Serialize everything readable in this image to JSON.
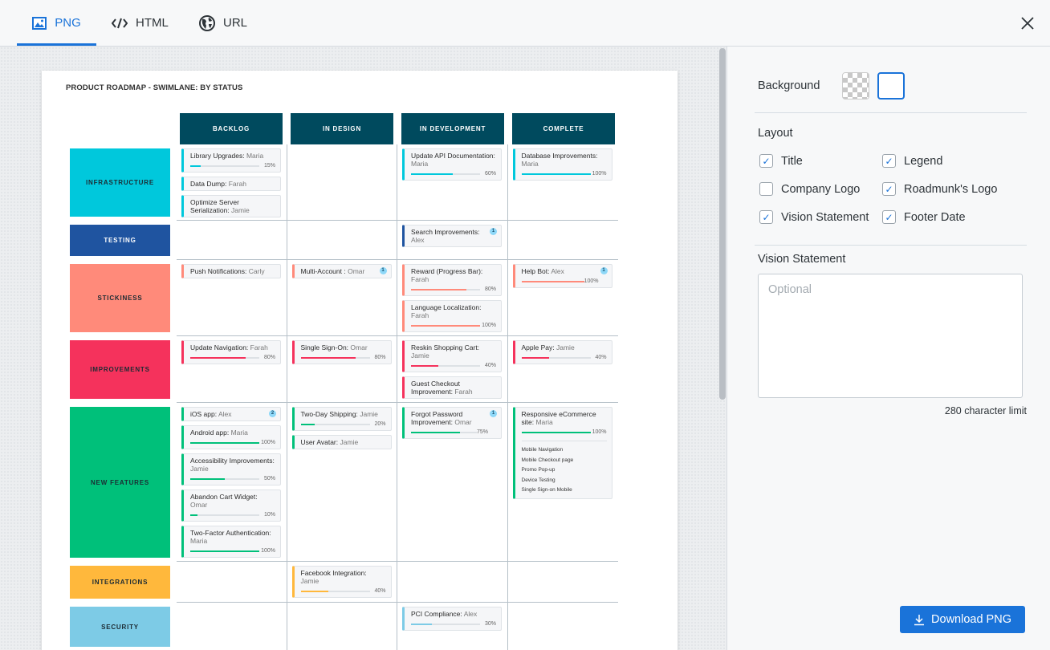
{
  "tabs": [
    {
      "label": "PNG",
      "icon": "image-icon",
      "active": true
    },
    {
      "label": "HTML",
      "icon": "code-icon"
    },
    {
      "label": "URL",
      "icon": "globe-icon"
    }
  ],
  "roadmap": {
    "title": "PRODUCT ROADMAP - SWIMLANE: BY STATUS",
    "columns": [
      "BACKLOG",
      "IN DESIGN",
      "IN DEVELOPMENT",
      "COMPLETE"
    ],
    "rows": [
      {
        "label": "INFRASTRUCTURE",
        "color": "#00c8dc",
        "cells": [
          [
            {
              "title": "Library Upgrades:",
              "owner": "Maria",
              "progress": 15
            },
            {
              "title": "Data Dump:",
              "owner": "Farah"
            },
            {
              "title": "Optimize Server Serialization:",
              "owner": "Jamie"
            }
          ],
          [],
          [
            {
              "title": "Update API Documentation:",
              "owner": "Maria",
              "progress": 60
            }
          ],
          [
            {
              "title": "Database Improvements:",
              "owner": "Maria",
              "progress": 100
            }
          ]
        ]
      },
      {
        "label": "TESTING",
        "color": "#1f54a0",
        "cells": [
          [],
          [],
          [
            {
              "title": "Search Improvements:",
              "owner": "Alex",
              "badge": "1"
            }
          ],
          []
        ]
      },
      {
        "label": "STICKINESS",
        "color": "#ff8a7a",
        "cells": [
          [
            {
              "title": "Push Notifications:",
              "owner": "Carly"
            }
          ],
          [
            {
              "title": "Multi-Account :",
              "owner": "Omar",
              "badge": "1"
            }
          ],
          [
            {
              "title": "Reward (Progress Bar):",
              "owner": "Farah",
              "progress": 80
            },
            {
              "title": "Language Localization:",
              "owner": "Farah",
              "progress": 100
            }
          ],
          [
            {
              "title": "Help Bot:",
              "owner": "Alex",
              "progress": 100,
              "badge": "1"
            }
          ]
        ]
      },
      {
        "label": "IMPROVEMENTS",
        "color": "#f5325c",
        "cells": [
          [
            {
              "title": "Update Navigation:",
              "owner": "Farah",
              "progress": 80
            }
          ],
          [
            {
              "title": "Single Sign-On:",
              "owner": "Omar",
              "progress": 80
            }
          ],
          [
            {
              "title": "Reskin Shopping Cart:",
              "owner": "Jamie",
              "progress": 40
            },
            {
              "title": "Guest Checkout Improvement:",
              "owner": "Farah"
            }
          ],
          [
            {
              "title": "Apple Pay:",
              "owner": "Jamie",
              "progress": 40
            }
          ]
        ]
      },
      {
        "label": "NEW FEATURES",
        "color": "#00c07a",
        "cells": [
          [
            {
              "title": "iOS app:",
              "owner": "Alex",
              "badge": "2"
            },
            {
              "title": "Android app:",
              "owner": "Maria",
              "progress": 100
            },
            {
              "title": "Accessibility Improvements:",
              "owner": "Jamie",
              "progress": 50
            },
            {
              "title": "Abandon Cart Widget:",
              "owner": "Omar",
              "progress": 10
            },
            {
              "title": "Two-Factor Authentication:",
              "owner": "Maria",
              "progress": 100
            }
          ],
          [
            {
              "title": "Two-Day Shipping:",
              "owner": "Jamie",
              "progress": 20
            },
            {
              "title": "User Avatar:",
              "owner": "Jamie"
            }
          ],
          [
            {
              "title": "Forgot Password Improvement:",
              "owner": "Omar",
              "progress": 75,
              "badge": "1"
            }
          ],
          [
            {
              "title": "Responsive eCommerce site:",
              "owner": "Maria",
              "progress": 100,
              "subitems": [
                "Mobile Navigation",
                "Mobile Checkout page",
                "Promo Pop-up",
                "Device Testing",
                "Single Sign-on Mobile"
              ]
            }
          ]
        ]
      },
      {
        "label": "INTEGRATIONS",
        "color": "#ffb83c",
        "cells": [
          [],
          [
            {
              "title": "Facebook Integration:",
              "owner": "Jamie",
              "progress": 40
            }
          ],
          [],
          []
        ]
      },
      {
        "label": "SECURITY",
        "color": "#7dcbe6",
        "cells": [
          [],
          [],
          [
            {
              "title": "PCI Compliance:",
              "owner": "Alex",
              "progress": 30
            }
          ],
          []
        ]
      }
    ]
  },
  "panel": {
    "background_label": "Background",
    "layout_label": "Layout",
    "options": [
      {
        "label": "Title",
        "checked": true
      },
      {
        "label": "Legend",
        "checked": true
      },
      {
        "label": "Company Logo",
        "checked": false
      },
      {
        "label": "Roadmunk's Logo",
        "checked": true
      },
      {
        "label": "Vision Statement",
        "checked": true
      },
      {
        "label": "Footer Date",
        "checked": true
      }
    ],
    "vision_label": "Vision Statement",
    "vision_placeholder": "Optional",
    "vision_value": "",
    "char_limit": "280 character limit",
    "download_label": "Download PNG",
    "accent": "#1a73d9"
  }
}
